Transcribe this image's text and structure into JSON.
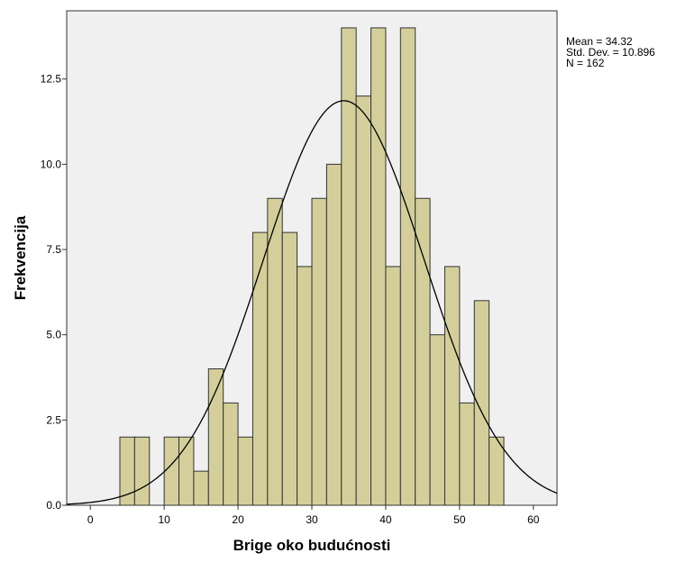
{
  "chart_data": {
    "type": "histogram",
    "xlabel": "Brige oko budućnosti",
    "ylabel": "Frekvencija",
    "xlim": [
      -3.2,
      63.2
    ],
    "ylim": [
      0,
      14.5
    ],
    "x_ticks": [
      0,
      10,
      20,
      30,
      40,
      50,
      60
    ],
    "y_ticks": [
      0,
      2.5,
      5,
      7.5,
      10,
      12.5
    ],
    "y_tick_labels": [
      "0.0",
      "2.5",
      "5.0",
      "7.5",
      "10.0",
      "12.5"
    ],
    "bin_width": 2,
    "bins_start": [
      4,
      6,
      8,
      10,
      12,
      14,
      16,
      18,
      20,
      22,
      24,
      26,
      28,
      30,
      32,
      34,
      36,
      38,
      40,
      42,
      44,
      46,
      48,
      50,
      52,
      54
    ],
    "values": [
      2,
      2,
      0,
      2,
      2,
      1,
      4,
      3,
      2,
      8,
      9,
      8,
      7,
      9,
      10,
      14,
      12,
      14,
      7,
      14,
      9,
      5,
      7,
      3,
      6,
      2
    ],
    "normal_curve": {
      "mean": 34.32,
      "std_dev": 10.896,
      "n": 162
    },
    "stats": [
      "Mean = 34.32",
      "Std. Dev. = 10.896",
      "N = 162"
    ],
    "grid": false,
    "colors": {
      "bar_fill": "#d4cf9a",
      "bar_stroke": "#333333",
      "plot_bg": "#f0f0f0",
      "curve": "#000000"
    }
  }
}
